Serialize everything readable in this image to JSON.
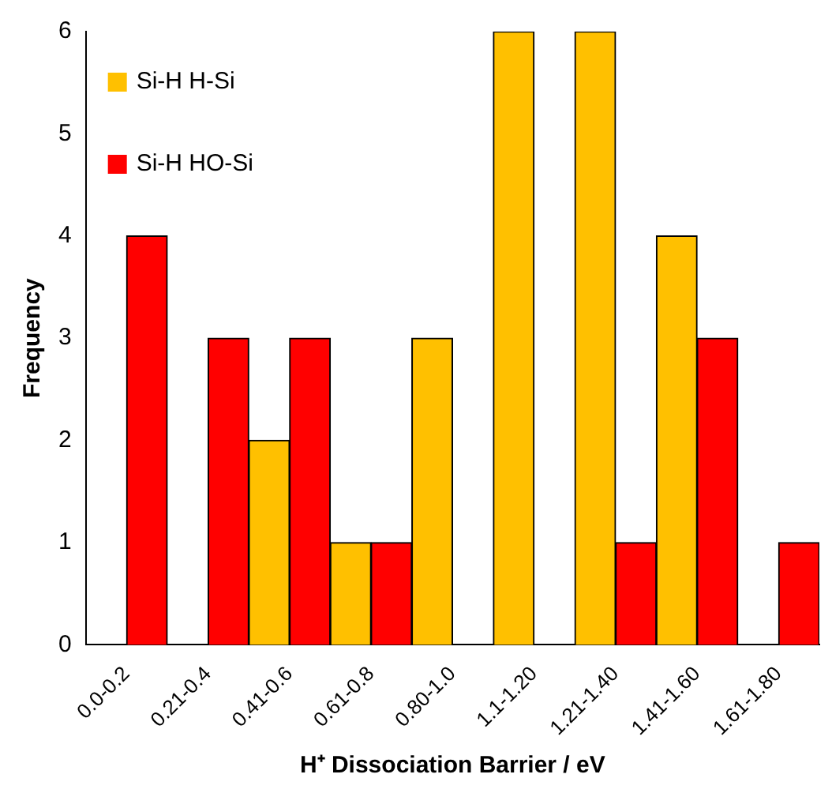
{
  "chart_data": {
    "type": "bar",
    "xlabel": "H⁺ Dissociation Barrier / eV",
    "ylabel": "Frequency",
    "categories": [
      "0.0-0.2",
      "0.21-0.4",
      "0.41-0.6",
      "0.61-0.8",
      "0.80-1.0",
      "1.1-1.20",
      "1.21-1.40",
      "1.41-1.60",
      "1.61-1.80"
    ],
    "series": [
      {
        "name": "Si-H H-Si",
        "color": "#ffc000",
        "values": [
          0,
          0,
          2,
          1,
          3,
          6,
          6,
          4,
          0
        ]
      },
      {
        "name": "Si-H HO-Si",
        "color": "#ff0000",
        "values": [
          4,
          3,
          3,
          1,
          0,
          0,
          1,
          3,
          1
        ]
      }
    ],
    "ylim": [
      0,
      6
    ],
    "yticks": [
      0,
      1,
      2,
      3,
      4,
      5,
      6
    ],
    "grid": false,
    "legend": "top left"
  }
}
